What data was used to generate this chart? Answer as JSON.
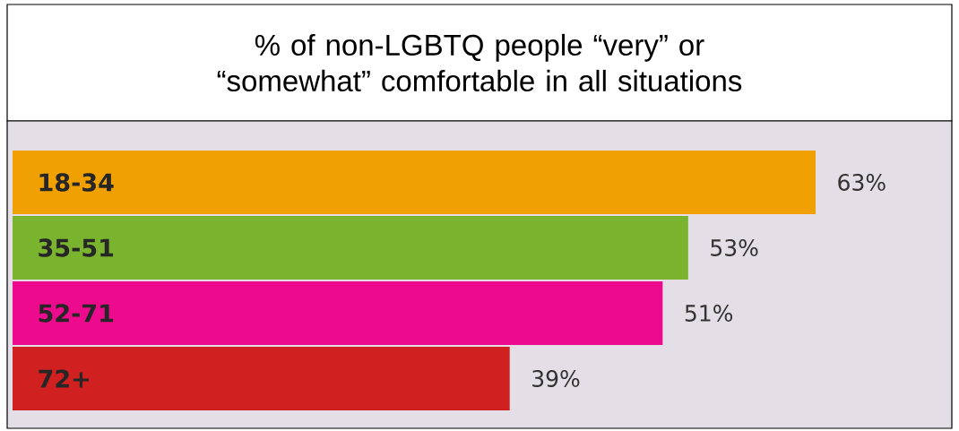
{
  "chart_data": {
    "type": "bar",
    "orientation": "horizontal",
    "title": "% of non-LGBTQ people “very” or “somewhat” comfortable in all situations",
    "categories": [
      "18-34",
      "35-51",
      "52-71",
      "72+"
    ],
    "values": [
      63,
      53,
      51,
      39
    ],
    "value_labels": [
      "63%",
      "53%",
      "51%",
      "39%"
    ],
    "colors": [
      "#f0a000",
      "#7ab32e",
      "#ec0b8c",
      "#d02020"
    ]
  }
}
